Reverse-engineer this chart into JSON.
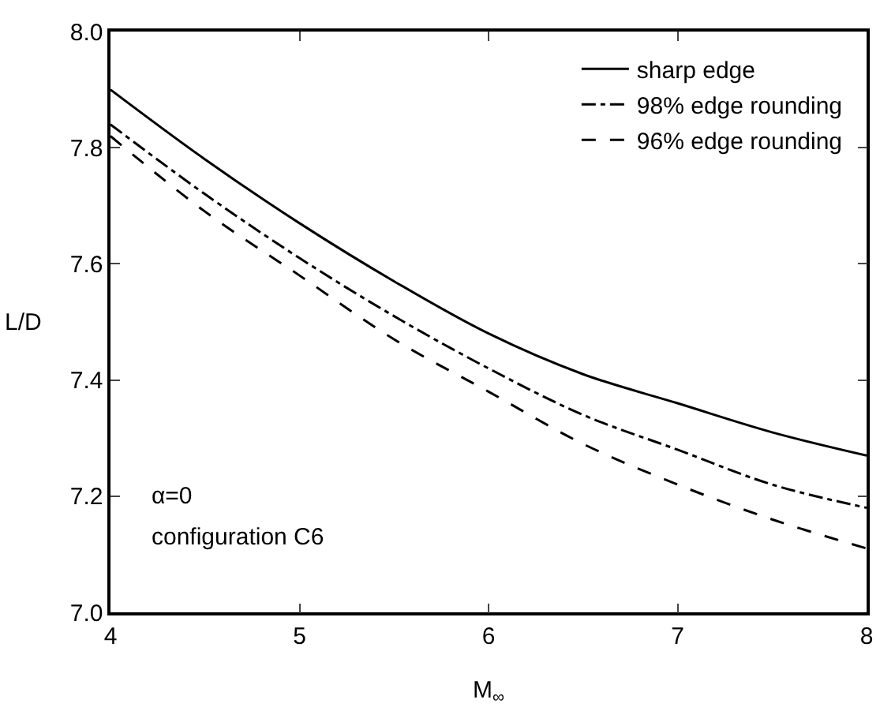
{
  "chart_data": {
    "type": "line",
    "xlabel": "M$_{∞}$",
    "ylabel": "L/D",
    "x": [
      4,
      4.5,
      5,
      5.5,
      6,
      6.5,
      7,
      7.5,
      8
    ],
    "series": [
      {
        "name": "sharp edge",
        "color": "#000000",
        "line_style": "solid",
        "values": [
          7.9,
          7.78,
          7.67,
          7.57,
          7.48,
          7.41,
          7.36,
          7.31,
          7.27
        ]
      },
      {
        "name": "98% edge rounding",
        "color": "#000000",
        "line_style": "dashdot",
        "values": [
          7.84,
          7.72,
          7.61,
          7.51,
          7.42,
          7.34,
          7.28,
          7.22,
          7.18
        ]
      },
      {
        "name": "96% edge rounding",
        "color": "#000000",
        "line_style": "dashed",
        "values": [
          7.82,
          7.69,
          7.58,
          7.47,
          7.38,
          7.29,
          7.22,
          7.16,
          7.11
        ]
      }
    ],
    "xlim": [
      4,
      8
    ],
    "xticks": [
      4,
      5,
      6,
      7,
      8
    ],
    "ylim": [
      7.0,
      8.0
    ],
    "yticks": [
      {
        "value": 7.0,
        "label": "7.0"
      },
      {
        "value": 7.2,
        "label": "7.2"
      },
      {
        "value": 7.4,
        "label": "7.4"
      },
      {
        "value": 7.6,
        "label": "7.6"
      },
      {
        "value": 7.8,
        "label": "7.8"
      },
      {
        "value": 8.0,
        "label": "8.0"
      }
    ],
    "grid": false,
    "legend": "top right",
    "marker": "none",
    "annotations": [
      "α=0",
      "configuration C6"
    ]
  }
}
